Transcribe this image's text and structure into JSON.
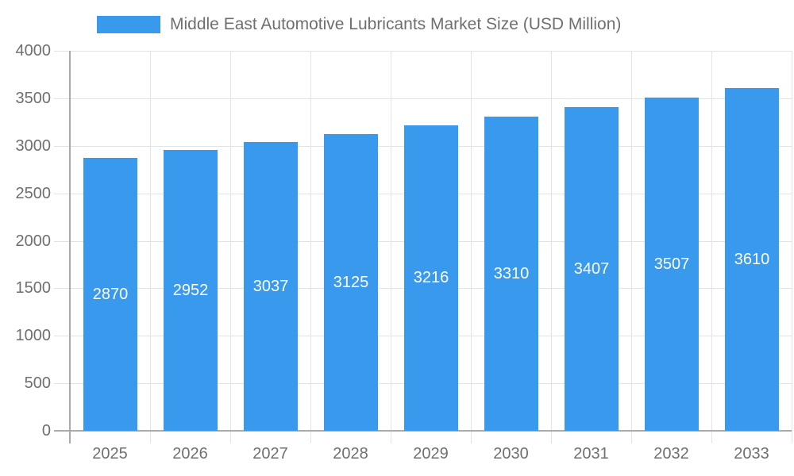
{
  "chart_data": {
    "type": "bar",
    "title": "Middle East Automotive Lubricants Market Size (USD Million)",
    "categories": [
      "2025",
      "2026",
      "2027",
      "2028",
      "2029",
      "2030",
      "2031",
      "2032",
      "2033"
    ],
    "values": [
      2870,
      2952,
      3037,
      3125,
      3216,
      3310,
      3407,
      3507,
      3610
    ],
    "xlabel": "",
    "ylabel": "",
    "ylim": [
      0,
      4000
    ],
    "ytick_step": 500,
    "yticks": [
      0,
      500,
      1000,
      1500,
      2000,
      2500,
      3000,
      3500,
      4000
    ],
    "grid": true,
    "legend_position": "top",
    "value_labels": "inside-middle",
    "colors": {
      "bar": "#399AED",
      "bar_value_label": "#ffffff",
      "grid_line": "#e3e3e3",
      "axis_line": "#aaaaaa",
      "tick_label": "#6f6f6f",
      "legend_text": "#6f6f6f",
      "background": "#ffffff"
    }
  }
}
